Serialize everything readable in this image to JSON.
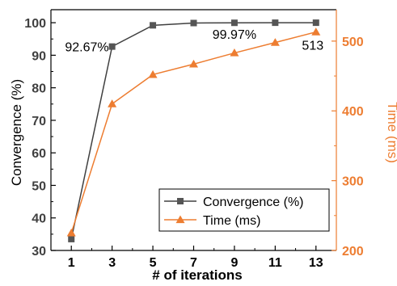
{
  "chart_data": {
    "type": "line",
    "title": "",
    "x": [
      1,
      3,
      5,
      7,
      9,
      11,
      13
    ],
    "xlabel": "# of iterations",
    "xlim": [
      0,
      14
    ],
    "x_ticks": [
      "1",
      "3",
      "5",
      "7",
      "9",
      "11",
      "13"
    ],
    "ylabel_left": "Convergence (%)",
    "ylim_left": [
      30,
      104
    ],
    "y_ticks_left": [
      "30",
      "40",
      "50",
      "60",
      "70",
      "80",
      "90",
      "100"
    ],
    "ylabel_right": "Time (ms)",
    "ylim_right": [
      200,
      545
    ],
    "y_ticks_right": [
      "200",
      "300",
      "400",
      "500"
    ],
    "grid": false,
    "legend": "lower-right",
    "series": [
      {
        "name": "Convergence (%)",
        "axis": "left",
        "marker": "square",
        "color": "#404040",
        "values": [
          33.5,
          92.67,
          99.2,
          99.9,
          99.97,
          100.0,
          100.0
        ]
      },
      {
        "name": "Time (ms)",
        "axis": "right",
        "marker": "triangle",
        "color": "#ed7d31",
        "values": [
          225,
          410,
          452,
          467,
          483,
          498,
          513
        ]
      }
    ],
    "annotations": [
      "92.67%",
      "99.97%",
      "513"
    ]
  }
}
